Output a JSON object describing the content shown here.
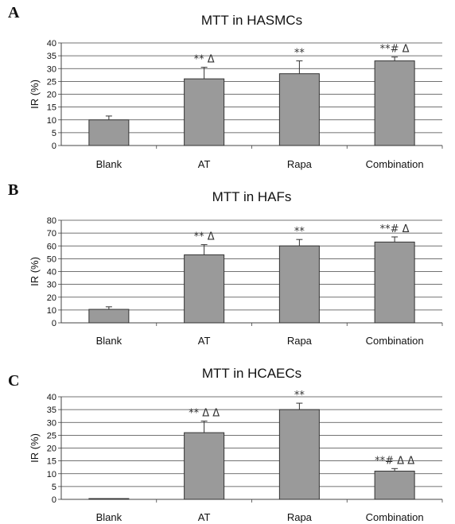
{
  "chart_data": [
    {
      "type": "bar",
      "panel": "A",
      "title": "MTT in HASMCs",
      "ylabel": "IR (%)",
      "xlabel": "",
      "ylim": [
        0,
        40
      ],
      "yticks": [
        0,
        5,
        10,
        15,
        20,
        25,
        30,
        35,
        40
      ],
      "grid": true,
      "categories": [
        "Blank",
        "AT",
        "Rapa",
        "Combination"
      ],
      "values": [
        10,
        26,
        28,
        33
      ],
      "errors": [
        1.5,
        4.5,
        5,
        1.5
      ],
      "annotations": [
        "",
        "** Δ",
        "**",
        "**# Δ"
      ],
      "bar_color": "#9a9a9a"
    },
    {
      "type": "bar",
      "panel": "B",
      "title": "MTT in HAFs",
      "ylabel": "IR (%)",
      "xlabel": "",
      "ylim": [
        0,
        80
      ],
      "yticks": [
        0,
        10,
        20,
        30,
        40,
        50,
        60,
        70,
        80
      ],
      "grid": true,
      "categories": [
        "Blank",
        "AT",
        "Rapa",
        "Combination"
      ],
      "values": [
        10.5,
        53,
        60,
        63
      ],
      "errors": [
        2,
        8,
        5,
        4
      ],
      "annotations": [
        "",
        "** Δ",
        "**",
        "**# Δ"
      ],
      "bar_color": "#9a9a9a"
    },
    {
      "type": "bar",
      "panel": "C",
      "title": "MTT in HCAECs",
      "ylabel": "IR (%)",
      "xlabel": "",
      "ylim": [
        0,
        40
      ],
      "yticks": [
        0,
        5,
        10,
        15,
        20,
        25,
        30,
        35,
        40
      ],
      "grid": true,
      "categories": [
        "Blank",
        "AT",
        "Rapa",
        "Combination"
      ],
      "values": [
        0.3,
        26,
        35,
        11
      ],
      "errors": [
        0,
        4.5,
        2.5,
        1
      ],
      "annotations": [
        "",
        "** Δ Δ",
        "**",
        "**# Δ Δ"
      ],
      "bar_color": "#9a9a9a"
    }
  ]
}
